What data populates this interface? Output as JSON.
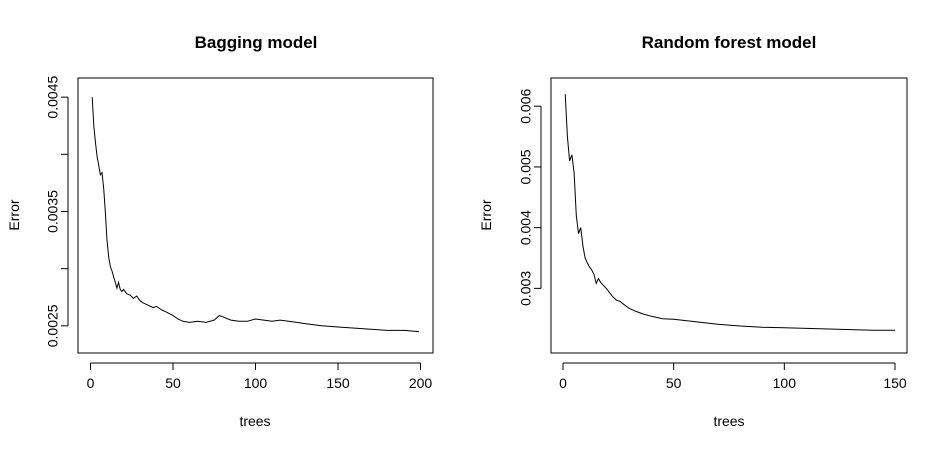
{
  "chart_data": [
    {
      "type": "line",
      "title": "Bagging model",
      "xlabel": "trees",
      "ylabel": "Error",
      "xlim": [
        0,
        200
      ],
      "ylim": [
        0.00235,
        0.00458
      ],
      "xticks": [
        0,
        50,
        100,
        150,
        200
      ],
      "xtick_labels": [
        "0",
        "50",
        "100",
        "150",
        "200"
      ],
      "yticks": [
        0.0025,
        0.003,
        0.0035,
        0.004,
        0.0045
      ],
      "ytick_labels": [
        "0.0025",
        "",
        "0.0035",
        "",
        "0.0045"
      ],
      "grid": false,
      "legend": "none",
      "series": [
        {
          "x": [
            1,
            2,
            3,
            4,
            5,
            6,
            7,
            8,
            9,
            10,
            11,
            12,
            13,
            14,
            15,
            16,
            17,
            18,
            19,
            20,
            22,
            24,
            26,
            28,
            30,
            32,
            35,
            38,
            40,
            43,
            46,
            50,
            53,
            56,
            60,
            65,
            70,
            75,
            78,
            80,
            85,
            90,
            95,
            100,
            105,
            110,
            115,
            120,
            125,
            130,
            140,
            150,
            160,
            170,
            180,
            190,
            199
          ],
          "y": [
            0.0045,
            0.00425,
            0.0041,
            0.00398,
            0.0039,
            0.00382,
            0.00384,
            0.0037,
            0.0035,
            0.00325,
            0.0031,
            0.00302,
            0.00298,
            0.00293,
            0.00288,
            0.00283,
            0.00288,
            0.00282,
            0.0028,
            0.00282,
            0.00278,
            0.00277,
            0.00274,
            0.00276,
            0.00272,
            0.0027,
            0.00268,
            0.00266,
            0.00267,
            0.00264,
            0.00262,
            0.00259,
            0.00256,
            0.00254,
            0.00253,
            0.00254,
            0.00253,
            0.00255,
            0.00259,
            0.00258,
            0.00255,
            0.00254,
            0.00254,
            0.00256,
            0.00255,
            0.00254,
            0.00255,
            0.00254,
            0.00253,
            0.00252,
            0.0025,
            0.00249,
            0.00248,
            0.00247,
            0.00246,
            0.00246,
            0.00245
          ]
        }
      ]
    },
    {
      "type": "line",
      "title": "Random forest model",
      "xlabel": "trees",
      "ylabel": "Error",
      "xlim": [
        0,
        150
      ],
      "ylim": [
        0.0021,
        0.0063
      ],
      "xticks": [
        0,
        50,
        100,
        150
      ],
      "xtick_labels": [
        "0",
        "50",
        "100",
        "150"
      ],
      "yticks": [
        0.003,
        0.004,
        0.005,
        0.006
      ],
      "ytick_labels": [
        "0.003",
        "0.004",
        "0.005",
        "0.006"
      ],
      "grid": false,
      "legend": "none",
      "series": [
        {
          "x": [
            1,
            2,
            3,
            4,
            5,
            6,
            7,
            8,
            9,
            10,
            11,
            12,
            13,
            14,
            15,
            16,
            17,
            18,
            20,
            22,
            24,
            26,
            28,
            30,
            33,
            36,
            40,
            45,
            50,
            55,
            60,
            65,
            70,
            80,
            90,
            100,
            110,
            120,
            130,
            140,
            150
          ],
          "y": [
            0.0062,
            0.0055,
            0.0051,
            0.0052,
            0.0049,
            0.0042,
            0.0039,
            0.004,
            0.0037,
            0.0035,
            0.00342,
            0.00335,
            0.0033,
            0.00323,
            0.00308,
            0.00316,
            0.0031,
            0.00306,
            0.00298,
            0.00288,
            0.00281,
            0.00278,
            0.00272,
            0.00267,
            0.00262,
            0.00258,
            0.00254,
            0.0025,
            0.00249,
            0.00247,
            0.00245,
            0.00243,
            0.00241,
            0.00238,
            0.00236,
            0.00235,
            0.00234,
            0.00233,
            0.00232,
            0.00231,
            0.00231
          ]
        }
      ]
    }
  ]
}
